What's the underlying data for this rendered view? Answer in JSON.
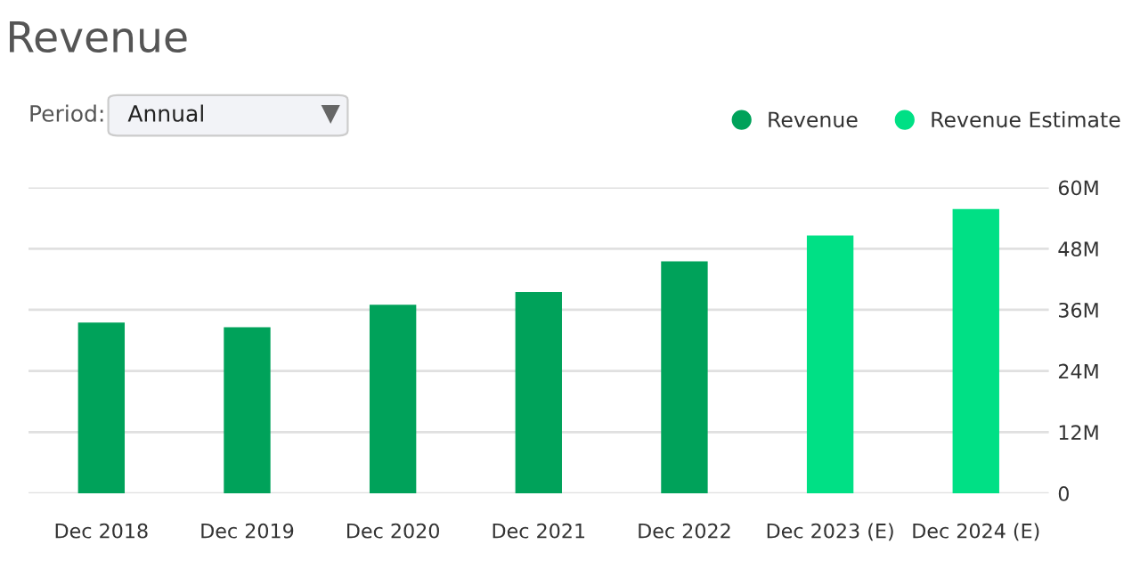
{
  "chart_data": {
    "type": "bar",
    "title": "Revenue",
    "annotations": [
      "Period:",
      "Annual"
    ],
    "categories": [
      "Dec 2018",
      "Dec 2019",
      "Dec 2020",
      "Dec 2021",
      "Dec 2022",
      "Dec 2023 (E)",
      "Dec 2024 (E)"
    ],
    "series": [
      {
        "name": "Revenue",
        "color": "#00a25a",
        "values": [
          33.5,
          32.6,
          37.0,
          39.5,
          45.5,
          null,
          null
        ]
      },
      {
        "name": "Revenue Estimate",
        "color": "#00e085",
        "values": [
          null,
          null,
          null,
          null,
          null,
          50.6,
          55.8
        ]
      }
    ],
    "stacked": true,
    "ylim": [
      0,
      60
    ],
    "yticks": [
      0,
      {
        "value": 12,
        "label": "12M"
      },
      {
        "value": 24,
        "label": "24M"
      },
      {
        "value": 36,
        "label": "36M"
      },
      {
        "value": 48,
        "label": "48M"
      },
      {
        "value": 60,
        "label": "60M"
      }
    ],
    "grid": "y",
    "legend": "top right"
  }
}
